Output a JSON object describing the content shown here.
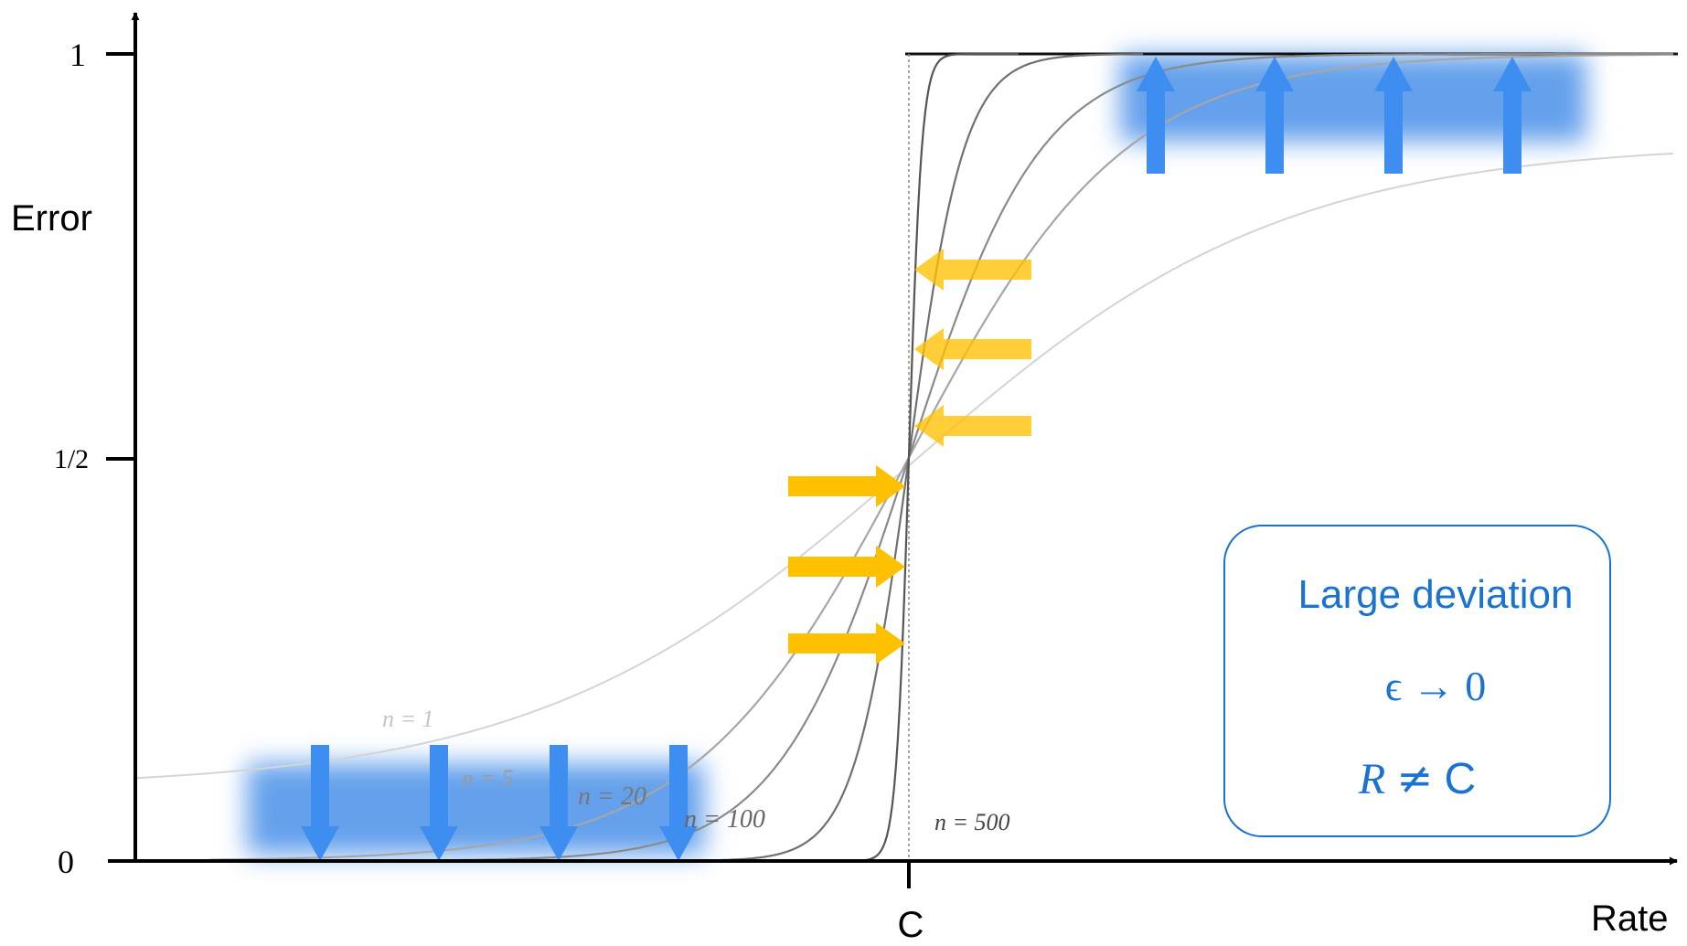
{
  "axes": {
    "y_label": "Error",
    "x_label": "Rate",
    "y_ticks": [
      "1",
      "1/2",
      "0"
    ],
    "x_tick": "C"
  },
  "curves": [
    {
      "label": "n = 1",
      "n": 1,
      "color": "#d4d4d4",
      "low_plateau": 0.09,
      "high_plateau": 0.89
    },
    {
      "label": "n = 5",
      "n": 5,
      "color": "#a6a6a6"
    },
    {
      "label": "n = 20",
      "n": 20,
      "color": "#8a8a8a"
    },
    {
      "label": "n = 100",
      "n": 100,
      "color": "#707070"
    },
    {
      "label": "n = 500",
      "n": 500,
      "color": "#555555"
    }
  ],
  "annotations": {
    "box_title": "Large deviation",
    "epsilon": "ϵ → 0",
    "rate_condition_r": "R",
    "rate_condition_ne": "≠",
    "rate_condition_c": "C"
  },
  "colors": {
    "blue_arrow": "#3d8ef0",
    "blue_glow": "#4a90e8",
    "yellow_arrow": "#ffc000",
    "box_border": "#1a73d1",
    "axis": "#000000"
  }
}
